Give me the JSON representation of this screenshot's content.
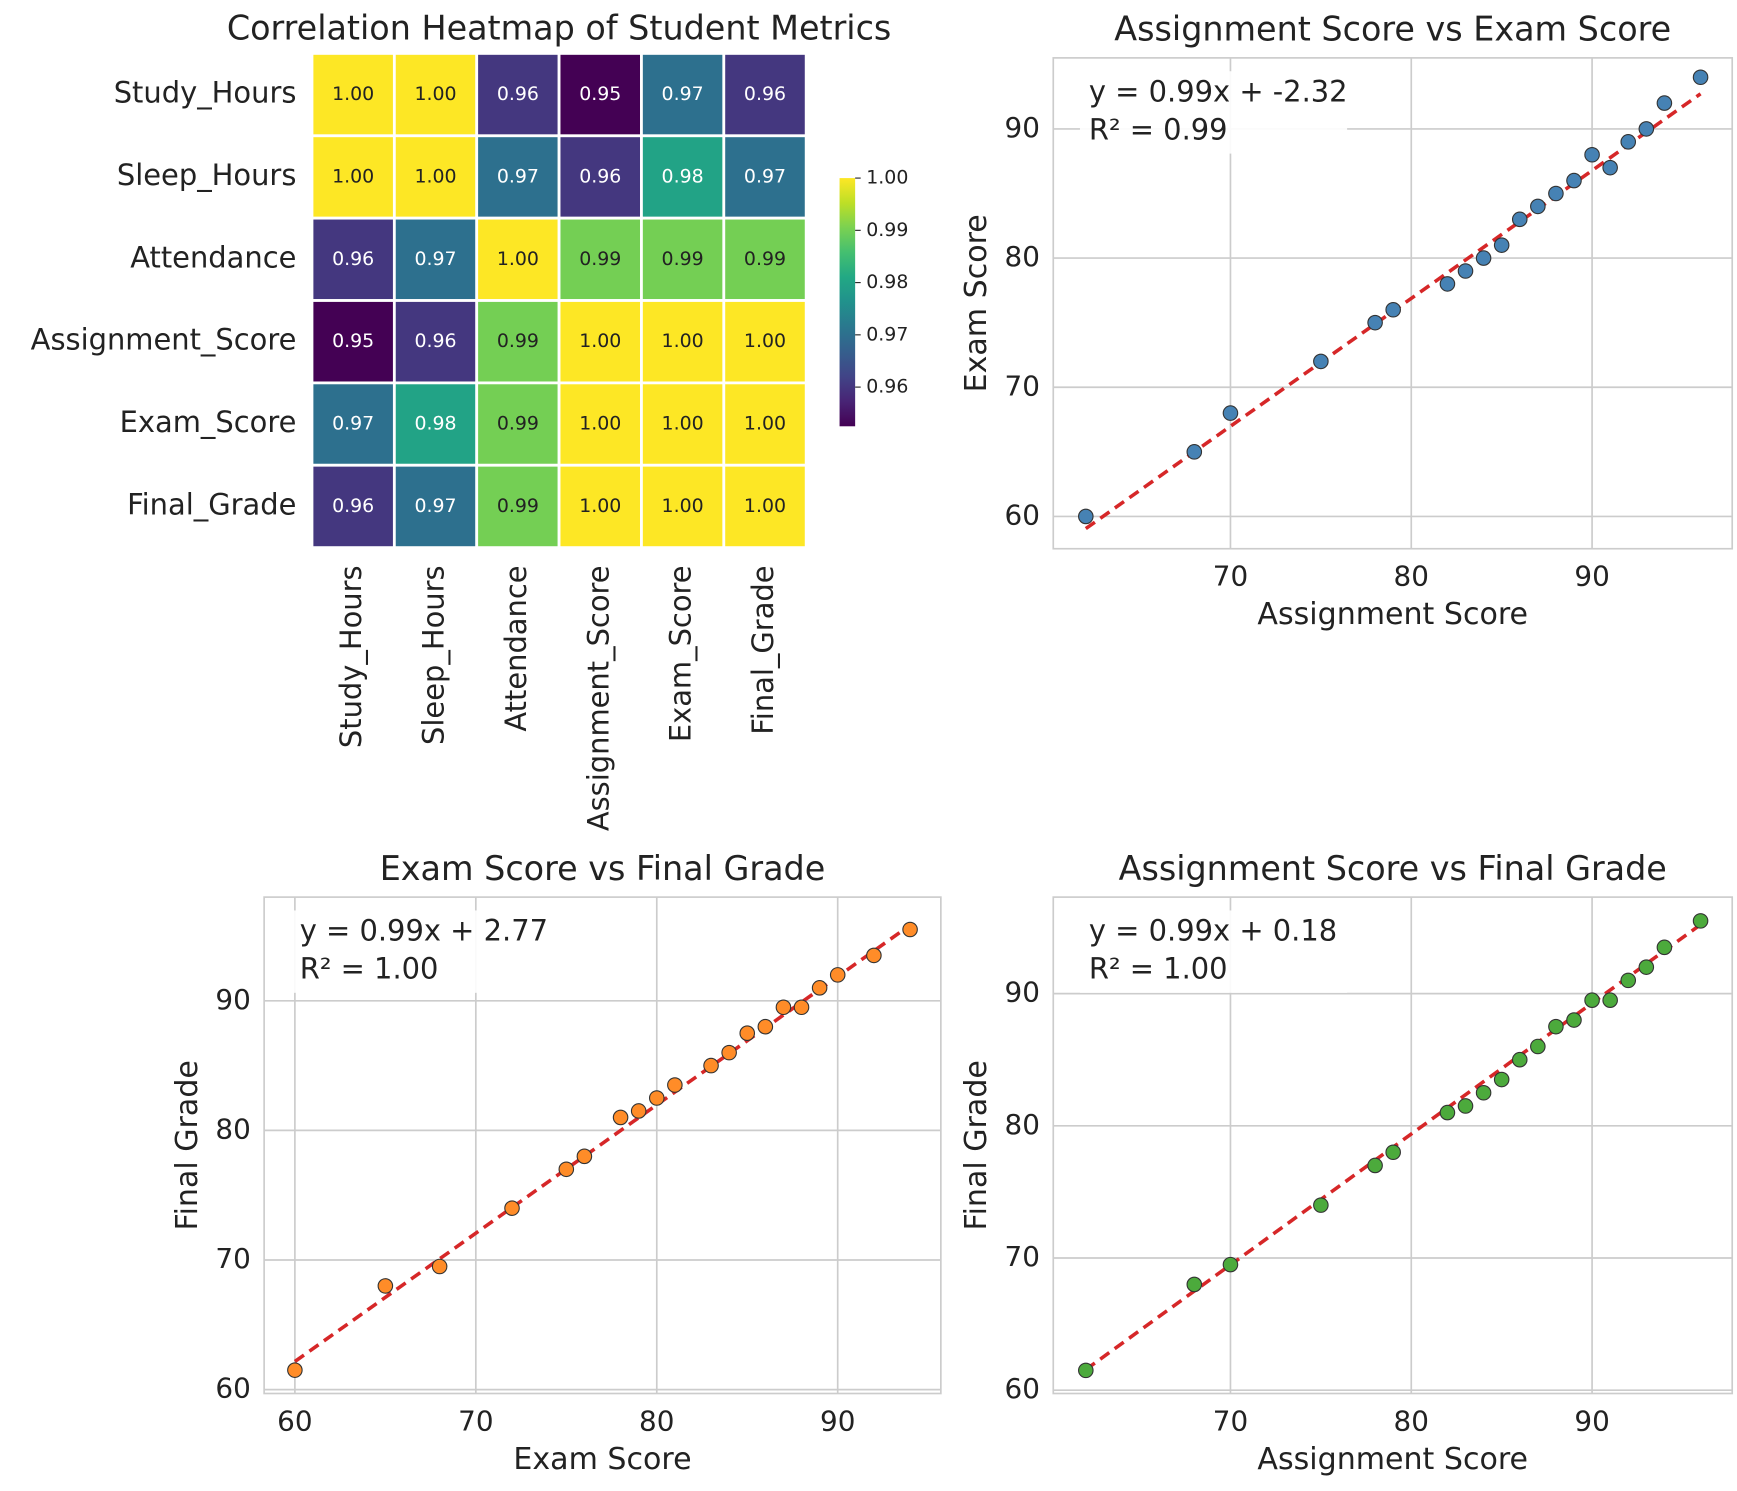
{
  "chart_data": [
    {
      "type": "heatmap",
      "title": "Correlation Heatmap of Student Metrics",
      "rows": [
        "Study_Hours",
        "Sleep_Hours",
        "Attendance",
        "Assignment_Score",
        "Exam_Score",
        "Final_Grade"
      ],
      "columns": [
        "Study_Hours",
        "Sleep_Hours",
        "Attendance",
        "Assignment_Score",
        "Exam_Score",
        "Final_Grade"
      ],
      "values": [
        [
          1,
          1,
          0.96,
          0.95,
          0.97,
          0.96
        ],
        [
          1,
          1,
          0.97,
          0.96,
          0.98,
          0.97
        ],
        [
          0.96,
          0.97,
          1,
          0.99,
          0.99,
          0.99
        ],
        [
          0.95,
          0.96,
          0.99,
          1,
          1,
          1
        ],
        [
          0.97,
          0.98,
          0.99,
          1,
          1,
          1
        ],
        [
          0.96,
          0.97,
          0.99,
          1,
          1,
          1
        ]
      ],
      "value_labels": [
        [
          "1.00",
          "1.00",
          "0.96",
          "0.95",
          "0.97",
          "0.96"
        ],
        [
          "1.00",
          "1.00",
          "0.97",
          "0.96",
          "0.98",
          "0.97"
        ],
        [
          "0.96",
          "0.97",
          "1.00",
          "0.99",
          "0.99",
          "0.99"
        ],
        [
          "0.95",
          "0.96",
          "0.99",
          "1.00",
          "1.00",
          "1.00"
        ],
        [
          "0.97",
          "0.98",
          "0.99",
          "1.00",
          "1.00",
          "1.00"
        ],
        [
          "0.96",
          "0.97",
          "0.99",
          "1.00",
          "1.00",
          "1.00"
        ]
      ],
      "colormap": "viridis",
      "clim": [
        0.9525,
        1.0
      ],
      "colorbar_ticks": [
        0.96,
        0.97,
        0.98,
        0.99,
        {
          "value": 1,
          "label": "1.00"
        }
      ]
    },
    {
      "type": "scatter",
      "title": "Assignment Score vs Exam Score",
      "xlabel": "Assignment Score",
      "ylabel": "Exam Score",
      "x": [
        62,
        68,
        70,
        75,
        78,
        79,
        82,
        83,
        84,
        85,
        86,
        87,
        88,
        89,
        90,
        91,
        92,
        93,
        94,
        96
      ],
      "values": [
        60,
        65,
        68,
        72,
        75,
        76,
        78,
        79,
        80,
        81,
        83,
        84,
        85,
        86,
        88,
        87,
        89,
        90,
        92,
        94
      ],
      "color": "#4682b4",
      "xlim": [
        60.2,
        97.75
      ],
      "ylim": [
        57.5,
        95.5
      ],
      "xticks": [
        70,
        80,
        90
      ],
      "yticks": [
        60,
        70,
        80,
        90
      ],
      "grid": true,
      "fit": {
        "slope": 0.99,
        "intercept": -2.32,
        "color": "#d62728"
      },
      "annotation": [
        "y = 0.99x + -2.32",
        "R² = 0.99"
      ]
    },
    {
      "type": "scatter",
      "title": "Exam Score vs Final Grade",
      "xlabel": "Exam Score",
      "ylabel": "Final Grade",
      "x": [
        60,
        65,
        68,
        72,
        75,
        76,
        78,
        79,
        80,
        81,
        83,
        84,
        85,
        86,
        88,
        87,
        89,
        90,
        92,
        94
      ],
      "values": [
        61.5,
        68,
        69.5,
        74,
        77,
        78,
        81,
        81.5,
        82.5,
        83.5,
        85,
        86,
        87.5,
        88,
        89.5,
        89.5,
        91,
        92,
        93.5,
        95.5
      ],
      "color": "#ff8c28",
      "xlim": [
        58.3,
        95.7
      ],
      "ylim": [
        59.7,
        98.0
      ],
      "xticks": [
        60,
        70,
        80,
        90
      ],
      "yticks": [
        60,
        70,
        80,
        90
      ],
      "grid": true,
      "fit": {
        "slope": 0.99,
        "intercept": 2.77,
        "color": "#d62728"
      },
      "annotation": [
        "y = 0.99x + 2.77",
        "R² = 1.00"
      ]
    },
    {
      "type": "scatter",
      "title": "Assignment Score vs Final Grade",
      "xlabel": "Assignment Score",
      "ylabel": "Final Grade",
      "x": [
        62,
        68,
        70,
        75,
        78,
        79,
        82,
        83,
        84,
        85,
        86,
        87,
        88,
        89,
        90,
        91,
        92,
        93,
        94,
        96
      ],
      "values": [
        61.5,
        68,
        69.5,
        74,
        77,
        78,
        81,
        81.5,
        82.5,
        83.5,
        85,
        86,
        87.5,
        88,
        89.5,
        89.5,
        91,
        92,
        93.5,
        95.5
      ],
      "color": "#4caa3c",
      "xlim": [
        60.2,
        97.75
      ],
      "ylim": [
        59.75,
        97.3
      ],
      "xticks": [
        70,
        80,
        90
      ],
      "yticks": [
        60,
        70,
        80,
        90
      ],
      "grid": true,
      "fit": {
        "slope": 0.99,
        "intercept": 0.18,
        "color": "#d62728"
      },
      "annotation": [
        "y = 0.99x + 0.18",
        "R² = 1.00"
      ]
    }
  ]
}
